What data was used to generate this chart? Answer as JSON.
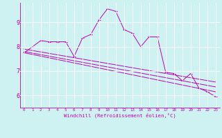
{
  "xlabel": "Windchill (Refroidissement éolien,°C)",
  "background_color": "#cef2f2",
  "line_color": "#bb00bb",
  "grid_color": "#ffffff",
  "xlim": [
    -0.5,
    23.5
  ],
  "ylim": [
    5.5,
    9.8
  ],
  "yticks": [
    6,
    7,
    8,
    9
  ],
  "xticks": [
    0,
    1,
    2,
    3,
    4,
    5,
    6,
    7,
    8,
    9,
    10,
    11,
    12,
    13,
    14,
    15,
    16,
    17,
    18,
    19,
    20,
    21,
    22,
    23
  ],
  "series1_x": [
    0,
    1,
    2,
    3,
    4,
    5,
    6,
    7,
    8,
    9,
    10,
    11,
    12,
    13,
    14,
    15,
    16,
    17,
    18,
    19,
    20,
    21,
    22,
    23
  ],
  "series1_y": [
    7.75,
    8.0,
    8.25,
    8.2,
    8.2,
    8.2,
    7.6,
    8.35,
    8.5,
    9.1,
    9.55,
    9.45,
    8.7,
    8.55,
    8.0,
    8.4,
    8.4,
    6.95,
    6.9,
    6.6,
    6.9,
    6.3,
    6.15,
    5.95
  ],
  "series2_x": [
    0,
    23
  ],
  "series2_y": [
    7.9,
    6.55
  ],
  "series3_x": [
    0,
    23
  ],
  "series3_y": [
    7.8,
    6.35
  ],
  "series4_x": [
    0,
    23
  ],
  "series4_y": [
    7.75,
    6.15
  ]
}
